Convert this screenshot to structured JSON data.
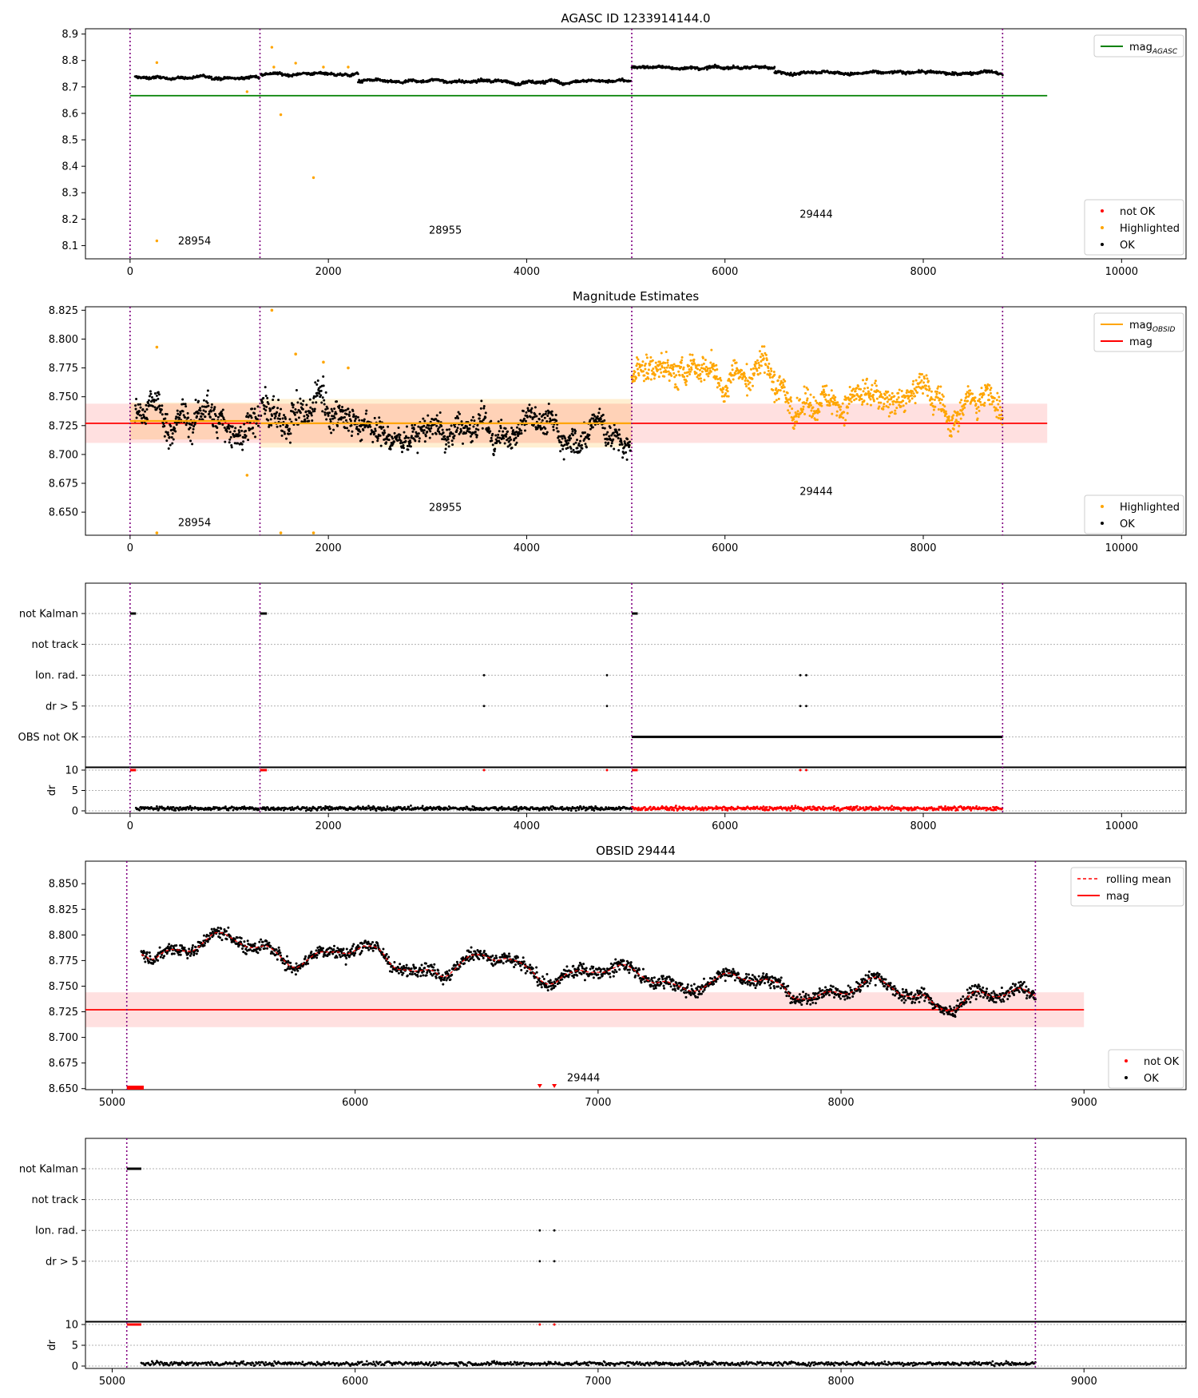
{
  "chart_data": [
    {
      "type": "scatter",
      "title": "AGASC ID 1233914144.0",
      "xlim": [
        -450,
        10650
      ],
      "ylim": [
        8.05,
        8.92
      ],
      "xticks": [
        0,
        2000,
        4000,
        6000,
        8000,
        10000
      ],
      "xtick_labels": [
        "0",
        "2000",
        "4000",
        "6000",
        "8000",
        "10000"
      ],
      "yticks": [
        8.1,
        8.2,
        8.3,
        8.4,
        8.5,
        8.6,
        8.7,
        8.8,
        8.9
      ],
      "ytick_labels": [
        "8.1",
        "8.2",
        "8.3",
        "8.4",
        "8.5",
        "8.6",
        "8.7",
        "8.8",
        "8.9"
      ],
      "obsid_boundaries": [
        0,
        1310,
        5060,
        8800
      ],
      "obsid_labels": [
        {
          "text": "28954",
          "x": 650,
          "y": 8.105
        },
        {
          "text": "28955",
          "x": 3180,
          "y": 8.145
        },
        {
          "text": "29444",
          "x": 6920,
          "y": 8.205
        }
      ],
      "hlines": [
        {
          "name": "mag_AGASC",
          "y": 8.667,
          "x0": 0,
          "x1": 9250,
          "color": "#008000"
        }
      ],
      "series": [
        {
          "name": "OK",
          "color": "#000000",
          "segments": [
            {
              "x0": 50,
              "x1": 1300,
              "base": 8.733
            },
            {
              "x0": 1320,
              "x1": 2300,
              "base": 8.748
            },
            {
              "x0": 2300,
              "x1": 5050,
              "base": 8.72
            },
            {
              "x0": 5060,
              "x1": 6500,
              "base": 8.775
            },
            {
              "x0": 6500,
              "x1": 8800,
              "base": 8.755
            }
          ]
        },
        {
          "name": "Highlighted",
          "color": "#ffa500",
          "points": [
            [
              270,
              8.118
            ],
            [
              270,
              8.792
            ],
            [
              1180,
              8.682
            ],
            [
              1430,
              8.85
            ],
            [
              1450,
              8.775
            ],
            [
              1520,
              8.595
            ],
            [
              1850,
              8.357
            ],
            [
              1670,
              8.79
            ],
            [
              1950,
              8.775
            ],
            [
              2200,
              8.775
            ]
          ]
        },
        {
          "name": "not OK",
          "color": "#ff0000",
          "points": []
        }
      ],
      "legend_upper": [
        {
          "label": "mag_AGASC",
          "kind": "line",
          "color": "#008000"
        }
      ],
      "legend_lower": [
        {
          "label": "not OK",
          "kind": "dot",
          "color": "#ff0000"
        },
        {
          "label": "Highlighted",
          "kind": "dot",
          "color": "#ffa500"
        },
        {
          "label": "OK",
          "kind": "dot",
          "color": "#000000"
        }
      ]
    },
    {
      "type": "scatter",
      "title": "Magnitude Estimates",
      "xlim": [
        -450,
        10650
      ],
      "ylim": [
        8.63,
        8.828
      ],
      "xticks": [
        0,
        2000,
        4000,
        6000,
        8000,
        10000
      ],
      "xtick_labels": [
        "0",
        "2000",
        "4000",
        "6000",
        "8000",
        "10000"
      ],
      "yticks": [
        8.65,
        8.675,
        8.7,
        8.725,
        8.75,
        8.775,
        8.8,
        8.825
      ],
      "ytick_labels": [
        "8.650",
        "8.675",
        "8.700",
        "8.725",
        "8.750",
        "8.775",
        "8.800",
        "8.825"
      ],
      "obsid_boundaries": [
        0,
        1310,
        5060,
        8800
      ],
      "obsid_labels": [
        {
          "text": "28954",
          "x": 650,
          "y": 8.638
        },
        {
          "text": "28955",
          "x": 3180,
          "y": 8.651
        },
        {
          "text": "29444",
          "x": 6920,
          "y": 8.665
        }
      ],
      "hlines": [
        {
          "name": "mag",
          "y": 8.727,
          "x0": -450,
          "x1": 9250,
          "color": "#ff0000",
          "band": [
            8.71,
            8.744
          ],
          "band_color": "rgba(255,0,0,0.12)"
        }
      ],
      "obsid_means": [
        {
          "y": 8.729,
          "x0": 0,
          "x1": 1310,
          "band": [
            8.713,
            8.745
          ]
        },
        {
          "y": 8.727,
          "x0": 1310,
          "x1": 5060,
          "band": [
            8.706,
            8.748
          ]
        }
      ],
      "series": [
        {
          "name": "OK",
          "color": "#000000",
          "segments": [
            {
              "x0": 50,
              "x1": 1300,
              "base": 8.729,
              "noise": 0.025
            },
            {
              "x0": 1320,
              "x1": 2300,
              "base": 8.738,
              "noise": 0.028
            },
            {
              "x0": 2300,
              "x1": 5050,
              "base": 8.719,
              "noise": 0.022
            }
          ]
        },
        {
          "name": "Highlighted",
          "color": "#ffa500",
          "segments": [
            {
              "x0": 5060,
              "x1": 6500,
              "base": 8.775,
              "noise": 0.022
            },
            {
              "x0": 6500,
              "x1": 8800,
              "base": 8.748,
              "noise": 0.022
            }
          ],
          "points": [
            [
              270,
              8.793
            ],
            [
              270,
              8.632
            ],
            [
              1430,
              8.825
            ],
            [
              1520,
              8.632
            ],
            [
              1850,
              8.632
            ],
            [
              1180,
              8.682
            ],
            [
              1670,
              8.787
            ],
            [
              1950,
              8.78
            ],
            [
              2200,
              8.775
            ]
          ]
        }
      ],
      "legend_upper": [
        {
          "label": "mag_OBSID",
          "kind": "line",
          "color": "#ffa500"
        },
        {
          "label": "mag",
          "kind": "line",
          "color": "#ff0000"
        }
      ],
      "legend_lower": [
        {
          "label": "Highlighted",
          "kind": "dot",
          "color": "#ffa500"
        },
        {
          "label": "OK",
          "kind": "dot",
          "color": "#000000"
        }
      ]
    },
    {
      "type": "scatter",
      "title": "",
      "xlim": [
        -450,
        10650
      ],
      "categories": [
        "not Kalman",
        "not track",
        "Ion. rad.",
        "dr > 5",
        "OBS not OK"
      ],
      "flags": [
        {
          "row": "not Kalman",
          "ranges": [
            [
              0,
              60
            ],
            [
              1310,
              1380
            ],
            [
              5060,
              5120
            ]
          ]
        },
        {
          "row": "Ion. rad.",
          "points": [
            3570,
            4810,
            6760,
            6820
          ]
        },
        {
          "row": "dr > 5",
          "points": [
            3570,
            4810,
            6760,
            6820
          ]
        },
        {
          "row": "OBS not OK",
          "ranges": [
            [
              5060,
              8800
            ]
          ]
        }
      ],
      "dr": {
        "ylabel": "dr",
        "yticks": [
          0,
          5,
          10
        ],
        "ytick_labels": [
          "0",
          "5",
          "10"
        ]
      },
      "xticks": [
        0,
        2000,
        4000,
        6000,
        8000,
        10000
      ],
      "xtick_labels": [
        "0",
        "2000",
        "4000",
        "6000",
        "8000",
        "10000"
      ],
      "obsid_boundaries": [
        0,
        1310,
        5060,
        8800
      ]
    },
    {
      "type": "scatter",
      "title": "OBSID 29444",
      "xlim": [
        4890,
        9420
      ],
      "ylim": [
        8.649,
        8.872
      ],
      "xticks": [
        5000,
        6000,
        7000,
        8000,
        9000
      ],
      "xtick_labels": [
        "5000",
        "6000",
        "7000",
        "8000",
        "9000"
      ],
      "yticks": [
        8.65,
        8.675,
        8.7,
        8.725,
        8.75,
        8.775,
        8.8,
        8.825,
        8.85
      ],
      "ytick_labels": [
        "8.650",
        "8.675",
        "8.700",
        "8.725",
        "8.750",
        "8.775",
        "8.800",
        "8.825",
        "8.850"
      ],
      "obsid_boundaries": [
        5060,
        8800
      ],
      "obsid_labels": [
        {
          "text": "29444",
          "x": 6940,
          "y": 8.657
        }
      ],
      "hlines": [
        {
          "name": "mag",
          "y": 8.727,
          "x0": 4890,
          "x1": 9000,
          "color": "#ff0000",
          "band": [
            8.71,
            8.744
          ],
          "band_color": "rgba(255,0,0,0.12)"
        }
      ],
      "series": [
        {
          "name": "OK",
          "color": "#000000",
          "segments": [
            {
              "x0": 5120,
              "x1": 8800,
              "base": 8.76,
              "noise": 0.022
            }
          ]
        },
        {
          "name": "rolling mean",
          "color": "#ff0000",
          "kind": "dashed"
        },
        {
          "name": "not OK",
          "color": "#ff0000",
          "ranges_at_floor": [
            [
              5060,
              5130
            ]
          ],
          "points_at_floor": [
            6760,
            6820
          ]
        }
      ],
      "legend_upper": [
        {
          "label": "rolling mean",
          "kind": "dashed",
          "color": "#ff0000"
        },
        {
          "label": "mag",
          "kind": "line",
          "color": "#ff0000"
        }
      ],
      "legend_lower": [
        {
          "label": "not OK",
          "kind": "dot",
          "color": "#ff0000"
        },
        {
          "label": "OK",
          "kind": "dot",
          "color": "#000000"
        }
      ]
    },
    {
      "type": "scatter",
      "title": "",
      "xlim": [
        4890,
        9420
      ],
      "categories": [
        "not Kalman",
        "not track",
        "Ion. rad.",
        "dr > 5"
      ],
      "flags": [
        {
          "row": "not Kalman",
          "ranges": [
            [
              5060,
              5120
            ]
          ]
        },
        {
          "row": "Ion. rad.",
          "points": [
            6760,
            6820
          ]
        },
        {
          "row": "dr > 5",
          "points": [
            6760,
            6820
          ]
        }
      ],
      "dr": {
        "ylabel": "dr",
        "yticks": [
          0,
          5,
          10
        ],
        "ytick_labels": [
          "0",
          "5",
          "10"
        ]
      },
      "xticks": [
        5000,
        6000,
        7000,
        8000,
        9000
      ],
      "xtick_labels": [
        "5000",
        "6000",
        "7000",
        "8000",
        "9000"
      ],
      "obsid_boundaries": [
        5060,
        8800
      ]
    }
  ]
}
